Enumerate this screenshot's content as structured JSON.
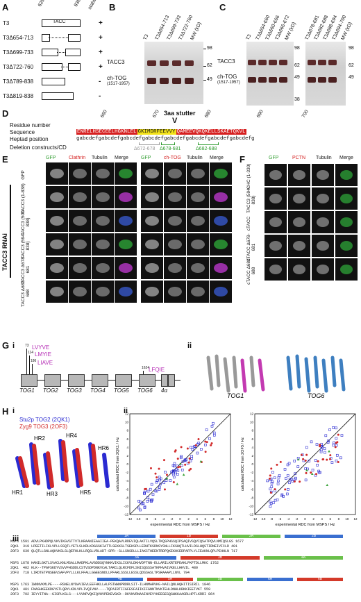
{
  "panels": {
    "A": "A",
    "B": "B",
    "C": "C",
    "D": "D",
    "E": "E",
    "F": "F",
    "G": "G",
    "H": "H"
  },
  "panelA": {
    "res_start": "629",
    "res_end": "838",
    "stability": "stability",
    "tacc": "TACC",
    "rows": [
      {
        "name": "T3",
        "stab": "+"
      },
      {
        "name": "T3Δ654-713",
        "stab": "+"
      },
      {
        "name": "T3Δ699-733",
        "stab": "+"
      },
      {
        "name": "T3Δ722-760",
        "stab": "+"
      },
      {
        "name": "T3Δ789-838",
        "stab": "-"
      },
      {
        "name": "T3Δ819-838",
        "stab": "-"
      }
    ]
  },
  "panelB": {
    "lanes": [
      "T3",
      "T3Δ654-713",
      "T3Δ699-733",
      "T3Δ722-760",
      "MW (kD)"
    ],
    "mw": [
      "98",
      "62",
      "49"
    ],
    "tacc3": "TACC3",
    "chtog": "ch-TOG",
    "chtog_range": "(1517-1957)"
  },
  "panelC": {
    "lanes1": [
      "T3",
      "T3Δ654-660",
      "T3Δ660-666",
      "T3Δ666-672",
      "MW (kD)"
    ],
    "lanes2": [
      "T3Δ678-681",
      "T3Δ682-688",
      "T3Δ688-694",
      "T3Δ694-700",
      "MW (kD)"
    ],
    "mw1": [
      "98",
      "62",
      "49",
      "38"
    ],
    "mw2": [
      "98",
      "62",
      "49"
    ],
    "tacc3": "TACC3",
    "chtog": "ch-TOG",
    "chtog_range": "(1517-1957)"
  },
  "panelD": {
    "stutter": "3aa stutter",
    "residue_label": "Residue number",
    "sequence_label": "Sequence",
    "heptad_label": "Heptad position",
    "deletion_label": "Deletion constructs/CD",
    "residues": [
      "660",
      "670",
      "680",
      "690",
      "700"
    ],
    "seq_red1": "ENRELHSECEELHGKNLEL",
    "seq_yellow": "GKIMDRFEEVVY",
    "seq_red2": "QAMEEVQKQKELLSKAETQKVL",
    "heptad": "gabcdefgabcdefgabcdefgabcdefgabcdefgabcdefgabcdefgabcdefg",
    "del1": "Δ672-678",
    "del2": "Δ678-681",
    "del3": "Δ682-688"
  },
  "panelE": {
    "rnai": "TACC3 RNAi",
    "headers_left": [
      "GFP",
      "Clathrin",
      "Tubulin",
      "Merge"
    ],
    "headers_right": [
      "GFP",
      "ch-TOG",
      "Tubulin",
      "Merge"
    ],
    "rows": [
      "GFP",
      "TACC3 (1-838)",
      "TACC3 (500-838)",
      "TACC3 (594-838)",
      "TACC3 Δ678-681",
      "TACC3 Δ682-688"
    ]
  },
  "panelF": {
    "headers": [
      "GFP",
      "PCTN",
      "Tubulin",
      "Merge"
    ],
    "rows": [
      "CHC (1-330)",
      "TACC3 (594-838)",
      "cTACC",
      "cTACC Δ678-681",
      "cTACC Δ682-688"
    ]
  },
  "panelG": {
    "i": "i",
    "ii": "ii",
    "motifs": [
      {
        "pos": "73",
        "seq": "LVYVE"
      },
      {
        "pos": "114",
        "seq": "LMYIE"
      },
      {
        "pos": "186",
        "seq": "LIAVE"
      },
      {
        "pos": "1624",
        "seq": "LFQIE"
      }
    ],
    "domains": [
      "TOG1",
      "TOG2",
      "TOG3",
      "TOG4",
      "TOG5",
      "TOG6",
      "4α"
    ],
    "structures": [
      "TOG1",
      "TOG6"
    ]
  },
  "panelH": {
    "i": "i",
    "ii": "ii",
    "iii": "iii",
    "legend1": "Stu2p TOG2 (2QK1)",
    "legend2": "Zyg9 TOG3 (2OF3)",
    "hr": [
      "HR1",
      "HR2",
      "HR3",
      "HR4",
      "HR5",
      "HR6"
    ],
    "xlabel": "experimental RDC from MSPS / Hz",
    "ylabel1": "calculated RDC from 2QK1 / Hz",
    "ylabel2": "calculated RDC from 2OF3 / Hz",
    "ticks": [
      "-12",
      "-10",
      "-8",
      "-6",
      "-4",
      "-2",
      "0",
      "2",
      "4",
      "6",
      "8",
      "10",
      "12"
    ],
    "aln": [
      {
        "helices": [
          "1A",
          "1B",
          "2A",
          "2B"
        ],
        "lines": [
          "MSPS 1591 ADVLPKHDPQLVKVIKGVSTTVTLKRAANIEAAIIEA-PEKQAVLRDEVIQLAKTILVQSLTKQSPHSSQIPSAQIVSQVIQSATPQVLNMIQSLGS 1677",
          "2QK1  319 LPEETILIKLVPLLSSQTLYETLSLKRLKDGSSKIATTLSEKKSLTSEKSPLLERHTKSDNSYSNLLFKSHQTLHVILDSLHQSTIRNEIVICLD 401",
          "2OF3  639 QLQTLLGNLAQKVKSLSLQEFHLKLLRQSLVRLADT-SPR--SLLSNSDLLLIAKCTHEENTRDPQKEKHCEDPAFPLYLIEAKNLQPLPEHHLN 717"
        ]
      },
      {
        "helices": [
          "3A",
          "3B",
          "4A"
        ],
        "lines": [
          "MSPS 1678 HANILGKTLSVACLKNLMSALLMADPKLAVGDDSQYNKKVIKSLICKVLDKHVDFTNN-ELLARILKRTEPEAKLPKFTDLLMKC 1762",
          "2QK1  402 KLK--TPGFSKDYVSVVFHSDDLCSTVSDPDNKVCALTARCLQLRCFDFLSNISQSSSATKPHVAIVKELLHKVIL 480",
          "2OF3  718 LIRDTETPNSEEVSAFVPYLLLKLFFALLGGEESNDLLPFARLSSSLLESSLQDSSASLTPSRAAAPLLNVL 794"
        ]
      },
      {
        "helices": [
          "4B",
          "5A",
          "5B",
          "6A",
          "6B"
        ],
        "lines": [
          "MSPS 1763 IWNNVKMLPE----RSNELNYDAVIEVLEEFHKLLALPSTWWNPRDRLSIT-ILHNMARVKG-NAILQNLHQHITISIRIL 1846",
          "2QK1  481 FNASHKEEKDGYSTLQRYLKDLVPLIVQIVNV----TQPAIRTIIGFESFAIIKIFGNNTNVKTEHLDNHLKRKKIEETVKT 559",
          "2OF3  792 IEYYITNA--GISPLKSLS---LVVNPVQKIQVHVPEKEVGKD--DKVNVRNAAINVEVYKEEGEGQSWKKAAGRLHPTLKRRI 864"
        ]
      }
    ]
  }
}
